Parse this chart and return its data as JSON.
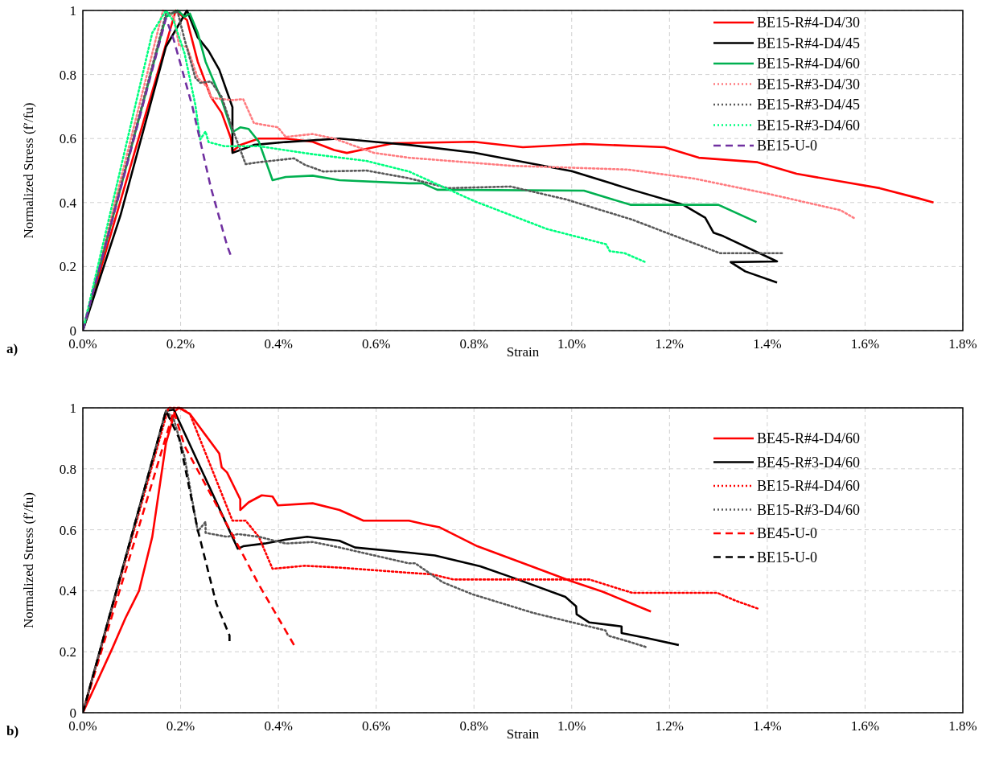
{
  "chart_data": [
    {
      "type": "line",
      "xlabel": "Strain",
      "ylabel": "Normalized Stress (f′/fu)",
      "annotations": [
        "a)"
      ],
      "xlim": [
        0,
        1.8
      ],
      "ylim": [
        0,
        1
      ],
      "xticks": [
        {
          "value": 0,
          "label": "0.0%"
        },
        {
          "value": 0.2,
          "label": "0.2%"
        },
        {
          "value": 0.4,
          "label": "0.4%"
        },
        {
          "value": 0.6,
          "label": "0.6%"
        },
        {
          "value": 0.8,
          "label": "0.8%"
        },
        {
          "value": 1.0,
          "label": "1.0%"
        },
        {
          "value": 1.2,
          "label": "1.2%"
        },
        {
          "value": 1.4,
          "label": "1.4%"
        },
        {
          "value": 1.6,
          "label": "1.6%"
        },
        {
          "value": 1.8,
          "label": "1.8%"
        }
      ],
      "yticks": [
        0,
        0.2,
        0.4,
        0.6,
        0.8,
        1
      ],
      "grid": true,
      "legend": "top right",
      "marker": "none",
      "series": [
        {
          "name": "BE15-R#4-D4/30",
          "color": "#ff0000",
          "line_style": "solid",
          "x": [
            0,
            0.19,
            0.213,
            0.235,
            0.262,
            0.284,
            0.303,
            0.306,
            0.322,
            0.36,
            0.415,
            0.47,
            0.514,
            0.54,
            0.58,
            0.634,
            0.8,
            0.9,
            1.025,
            1.19,
            1.26,
            1.38,
            1.46,
            1.55,
            1.63,
            1.71,
            1.74
          ],
          "values": [
            0,
            1,
            0.97,
            0.84,
            0.73,
            0.68,
            0.6,
            0.56,
            0.58,
            0.6,
            0.6,
            0.59,
            0.564,
            0.555,
            0.568,
            0.585,
            0.59,
            0.573,
            0.583,
            0.573,
            0.54,
            0.526,
            0.49,
            0.466,
            0.445,
            0.413,
            0.4
          ]
        },
        {
          "name": "BE15-R#4-D4/45",
          "color": "#000000",
          "line_style": "solid",
          "x": [
            0,
            0.077,
            0.17,
            0.213,
            0.235,
            0.257,
            0.279,
            0.306,
            0.306,
            0.35,
            0.415,
            0.525,
            0.6,
            0.667,
            0.8,
            1.0,
            1.123,
            1.228,
            1.273,
            1.29,
            1.31,
            1.42,
            1.325,
            1.355,
            1.42
          ],
          "values": [
            0,
            0.36,
            0.887,
            1,
            0.916,
            0.874,
            0.815,
            0.698,
            0.555,
            0.58,
            0.589,
            0.6,
            0.589,
            0.58,
            0.556,
            0.498,
            0.44,
            0.393,
            0.353,
            0.306,
            0.295,
            0.216,
            0.214,
            0.185,
            0.15
          ]
        },
        {
          "name": "BE15-R#4-D4/60",
          "color": "#00b050",
          "line_style": "solid",
          "x": [
            0,
            0.17,
            0.194,
            0.208,
            0.219,
            0.235,
            0.251,
            0.284,
            0.306,
            0.322,
            0.339,
            0.36,
            0.388,
            0.415,
            0.47,
            0.525,
            0.667,
            0.695,
            0.725,
            1.025,
            1.12,
            1.3,
            1.378
          ],
          "values": [
            0,
            0.98,
            1,
            0.98,
            0.99,
            0.93,
            0.84,
            0.72,
            0.62,
            0.635,
            0.63,
            0.59,
            0.47,
            0.48,
            0.484,
            0.47,
            0.46,
            0.46,
            0.44,
            0.437,
            0.393,
            0.393,
            0.339
          ]
        },
        {
          "name": "BE15-R#3-D4/30",
          "color": "#ff7c80",
          "line_style": "dotted",
          "x": [
            0,
            0.164,
            0.186,
            0.197,
            0.213,
            0.235,
            0.257,
            0.262,
            0.306,
            0.328,
            0.35,
            0.399,
            0.415,
            0.47,
            0.514,
            0.596,
            0.667,
            0.875,
            1.115,
            1.25,
            1.4,
            1.55,
            1.577
          ],
          "values": [
            0,
            1,
            0.98,
            0.89,
            0.887,
            0.79,
            0.757,
            0.727,
            0.72,
            0.723,
            0.648,
            0.635,
            0.605,
            0.614,
            0.6,
            0.555,
            0.54,
            0.515,
            0.503,
            0.475,
            0.428,
            0.376,
            0.352
          ]
        },
        {
          "name": "BE15-R#3-D4/45",
          "color": "#595959",
          "line_style": "dotted",
          "x": [
            0,
            0.17,
            0.194,
            0.208,
            0.23,
            0.24,
            0.262,
            0.284,
            0.306,
            0.333,
            0.36,
            0.432,
            0.454,
            0.492,
            0.58,
            0.667,
            0.747,
            0.875,
            0.988,
            1.123,
            1.303,
            1.43
          ],
          "values": [
            0,
            0.99,
            0.995,
            0.91,
            0.79,
            0.774,
            0.778,
            0.73,
            0.63,
            0.52,
            0.526,
            0.538,
            0.518,
            0.497,
            0.5,
            0.476,
            0.445,
            0.45,
            0.41,
            0.347,
            0.242,
            0.242
          ]
        },
        {
          "name": "BE15-R#3-D4/60",
          "color": "#00ff80",
          "line_style": "dotted",
          "x": [
            0,
            0.142,
            0.17,
            0.186,
            0.208,
            0.23,
            0.24,
            0.251,
            0.257,
            0.29,
            0.36,
            0.47,
            0.58,
            0.667,
            0.8,
            0.95,
            1.07,
            1.078,
            1.108,
            1.149
          ],
          "values": [
            0,
            0.93,
            1,
            0.966,
            0.866,
            0.706,
            0.597,
            0.622,
            0.589,
            0.576,
            0.576,
            0.551,
            0.53,
            0.497,
            0.405,
            0.317,
            0.27,
            0.248,
            0.242,
            0.215
          ]
        },
        {
          "name": "BE15-U-0",
          "color": "#7030a0",
          "line_style": "dashed",
          "x": [
            0,
            0.17,
            0.186,
            0.224,
            0.262,
            0.295,
            0.302
          ],
          "values": [
            0,
            0.975,
            0.908,
            0.7,
            0.446,
            0.266,
            0.237
          ]
        }
      ]
    },
    {
      "type": "line",
      "xlabel": "Strain",
      "ylabel": "Normalized Stress (f′/fu)",
      "annotations": [
        "b)"
      ],
      "xlim": [
        0,
        1.8
      ],
      "ylim": [
        0,
        1
      ],
      "xticks": [
        {
          "value": 0,
          "label": "0.0%"
        },
        {
          "value": 0.2,
          "label": "0.2%"
        },
        {
          "value": 0.4,
          "label": "0.4%"
        },
        {
          "value": 0.6,
          "label": "0.6%"
        },
        {
          "value": 0.8,
          "label": "0.8%"
        },
        {
          "value": 1.0,
          "label": "1.0%"
        },
        {
          "value": 1.2,
          "label": "1.2%"
        },
        {
          "value": 1.4,
          "label": "1.4%"
        },
        {
          "value": 1.6,
          "label": "1.6%"
        },
        {
          "value": 1.8,
          "label": "1.8%"
        }
      ],
      "yticks": [
        0,
        0.2,
        0.4,
        0.6,
        0.8,
        1
      ],
      "grid": true,
      "legend": "top right",
      "marker": "none",
      "series": [
        {
          "name": "BE45-R#4-D4/60",
          "color": "#ff0000",
          "line_style": "solid",
          "x": [
            0,
            0.06,
            0.087,
            0.115,
            0.142,
            0.17,
            0.189,
            0.197,
            0.219,
            0.279,
            0.284,
            0.295,
            0.322,
            0.322,
            0.339,
            0.366,
            0.388,
            0.399,
            0.47,
            0.525,
            0.574,
            0.667,
            0.703,
            0.73,
            0.807,
            0.91,
            0.998,
            1.063,
            1.162
          ],
          "values": [
            0,
            0.21,
            0.31,
            0.4,
            0.577,
            0.884,
            0.99,
            1,
            0.98,
            0.85,
            0.805,
            0.788,
            0.7,
            0.665,
            0.69,
            0.713,
            0.709,
            0.68,
            0.687,
            0.665,
            0.63,
            0.63,
            0.617,
            0.608,
            0.546,
            0.485,
            0.432,
            0.397,
            0.332
          ]
        },
        {
          "name": "BE45-R#3-D4/60",
          "color": "#000000",
          "line_style": "solid",
          "x": [
            0,
            0.17,
            0.186,
            0.317,
            0.328,
            0.372,
            0.415,
            0.459,
            0.525,
            0.557,
            0.667,
            0.72,
            0.813,
            0.883,
            0.987,
            1.009,
            1.01,
            1.036,
            1.102,
            1.102,
            1.156,
            1.219
          ],
          "values": [
            0,
            0.99,
            0.994,
            0.538,
            0.546,
            0.555,
            0.568,
            0.577,
            0.564,
            0.542,
            0.525,
            0.516,
            0.48,
            0.441,
            0.38,
            0.349,
            0.323,
            0.296,
            0.283,
            0.261,
            0.244,
            0.222
          ]
        },
        {
          "name": "BE15-R#4-D4/60",
          "color": "#ff0000",
          "line_style": "dotted",
          "x": [
            0,
            0.175,
            0.2,
            0.219,
            0.306,
            0.333,
            0.36,
            0.388,
            0.454,
            0.525,
            0.667,
            0.714,
            0.758,
            1.036,
            1.124,
            1.298,
            1.336,
            1.38
          ],
          "values": [
            0,
            1,
            1,
            0.98,
            0.63,
            0.63,
            0.577,
            0.472,
            0.482,
            0.476,
            0.459,
            0.454,
            0.437,
            0.437,
            0.393,
            0.393,
            0.367,
            0.342
          ]
        },
        {
          "name": "BE15-R#3-D4/60",
          "color": "#595959",
          "line_style": "dotted",
          "x": [
            0,
            0.17,
            0.186,
            0.208,
            0.235,
            0.251,
            0.251,
            0.295,
            0.317,
            0.36,
            0.415,
            0.47,
            0.525,
            0.667,
            0.68,
            0.736,
            0.796,
            0.922,
            1.069,
            1.074,
            1.113,
            1.151
          ],
          "values": [
            0,
            0.99,
            0.963,
            0.84,
            0.595,
            0.626,
            0.59,
            0.577,
            0.586,
            0.577,
            0.555,
            0.56,
            0.542,
            0.49,
            0.49,
            0.428,
            0.389,
            0.327,
            0.27,
            0.253,
            0.235,
            0.216
          ]
        },
        {
          "name": "BE45-U-0",
          "color": "#ff0000",
          "line_style": "dashed",
          "x": [
            0,
            0.186,
            0.208,
            0.279,
            0.36,
            0.432
          ],
          "values": [
            0,
            0.99,
            0.875,
            0.665,
            0.42,
            0.222
          ]
        },
        {
          "name": "BE15-U-0",
          "color": "#000000",
          "line_style": "dashed",
          "x": [
            0,
            0.17,
            0.197,
            0.235,
            0.273,
            0.3,
            0.3
          ],
          "values": [
            0,
            0.99,
            0.9,
            0.6,
            0.358,
            0.253,
            0.235
          ]
        }
      ]
    }
  ]
}
